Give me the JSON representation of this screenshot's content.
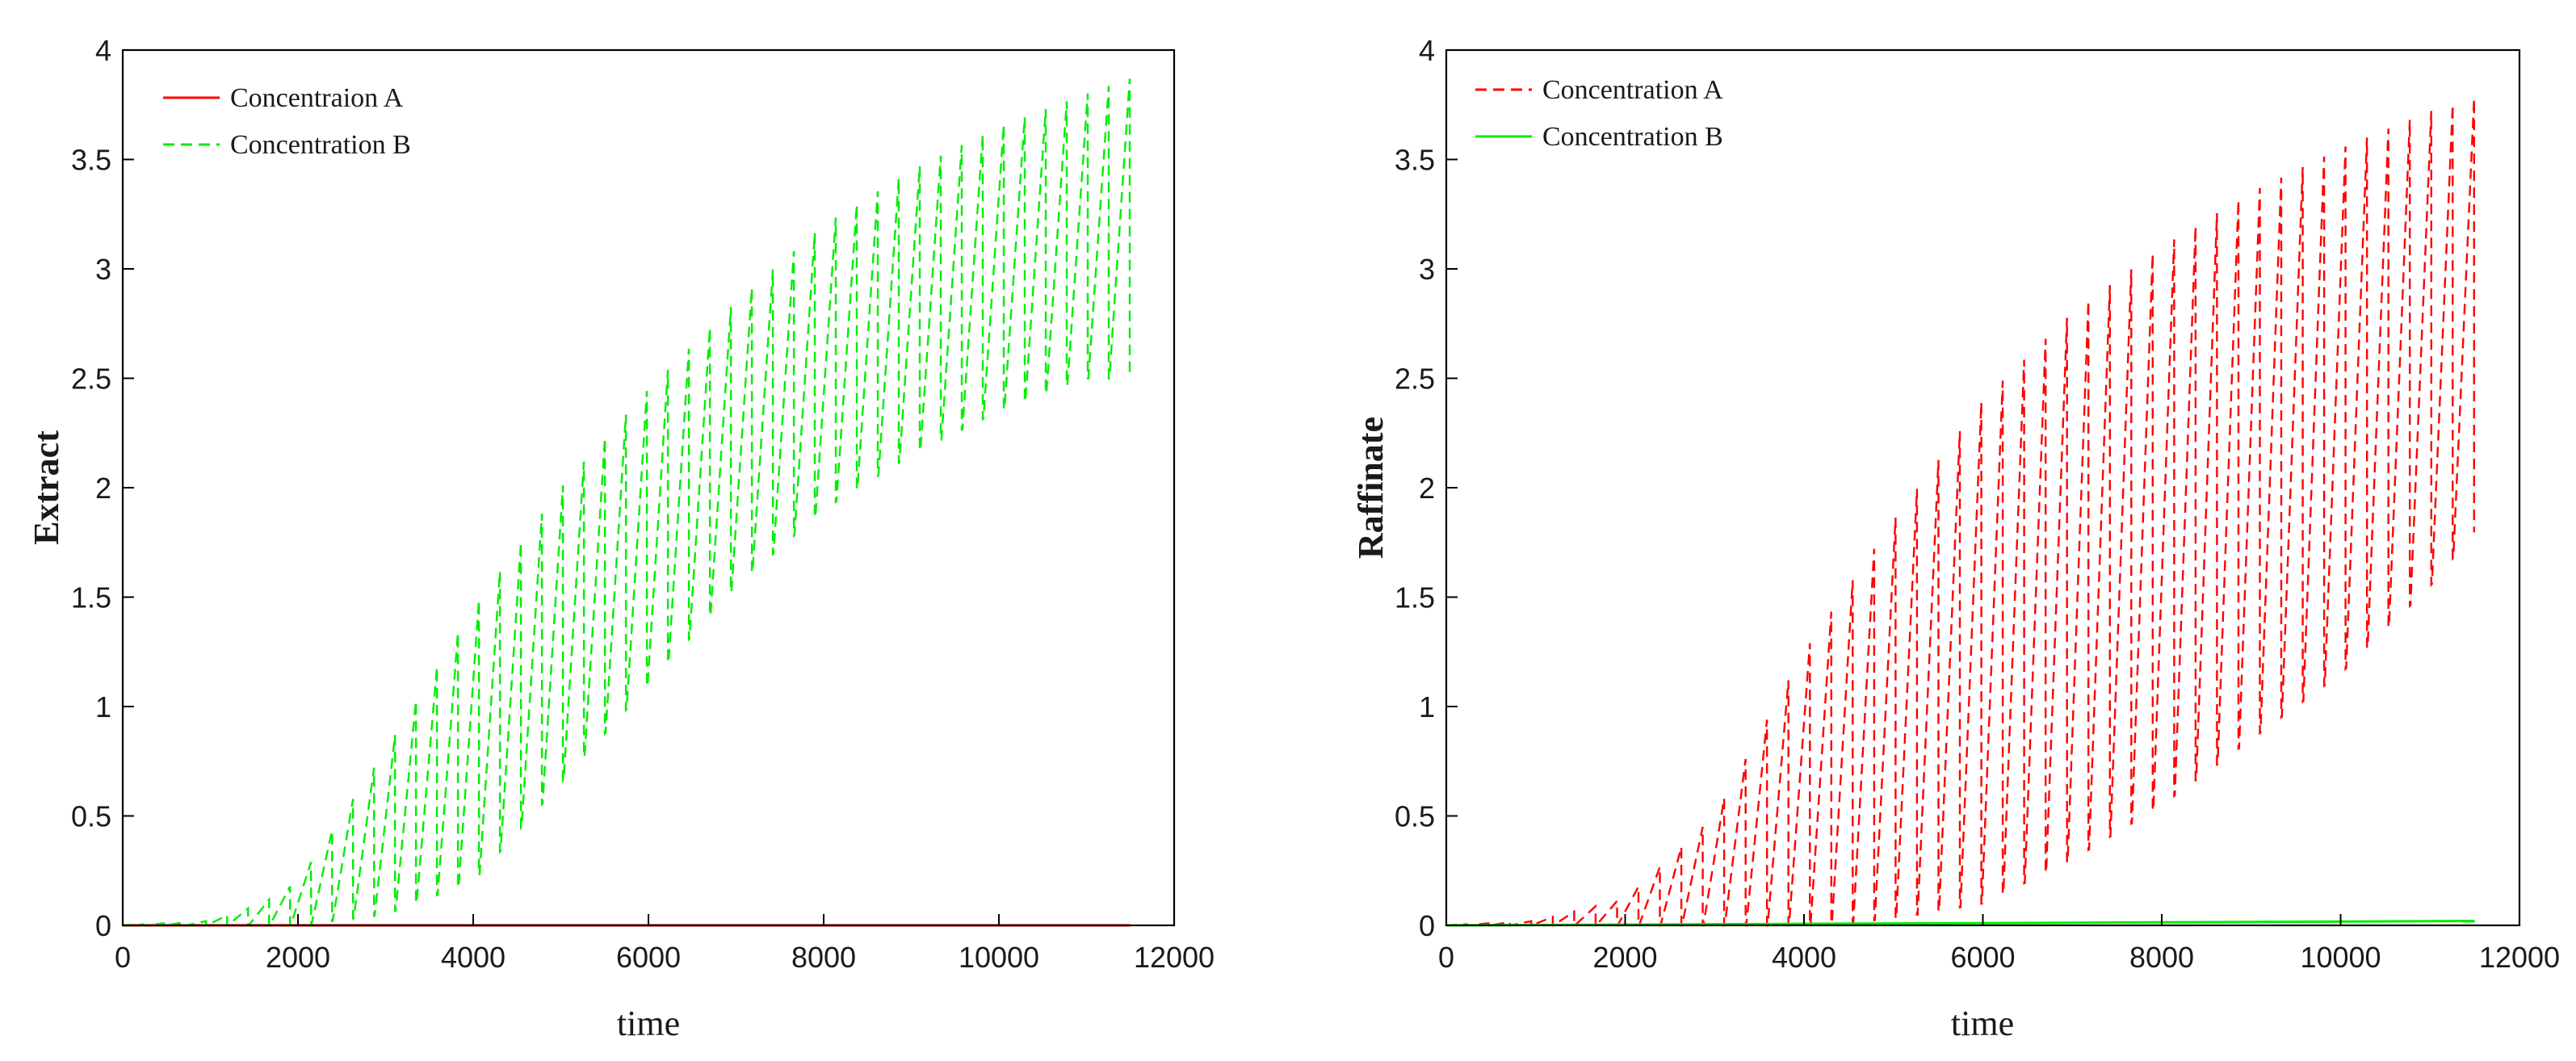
{
  "chart_data": [
    {
      "type": "line",
      "title": "",
      "xlabel": "time",
      "ylabel": "Extract",
      "xlim": [
        0,
        12000
      ],
      "ylim": [
        0,
        4
      ],
      "xticks": [
        0,
        2000,
        4000,
        6000,
        8000,
        10000,
        12000
      ],
      "yticks": [
        0,
        0.5,
        1,
        1.5,
        2,
        2.5,
        3,
        3.5,
        4
      ],
      "ytick_labels": [
        "0",
        "0.5",
        "1",
        "1.5",
        "2",
        "2.5",
        "3",
        "3.5",
        "4"
      ],
      "xtick_labels": [
        "0",
        "2000",
        "4000",
        "6000",
        "8000",
        "10000",
        "12000"
      ],
      "legend_position": "top-left",
      "cycles": 48,
      "cycle_start_time": 0,
      "cycle_end_time": 11500,
      "series": [
        {
          "name": "Concentraion A",
          "color": "#ff0000",
          "style": "solid",
          "x": [
            0,
            11500
          ],
          "y": [
            0,
            0
          ]
        },
        {
          "name": "Concentration B",
          "color": "#00ee00",
          "style": "dashed",
          "x": [
            0,
            1000,
            1600,
            2000,
            3000,
            4000,
            5000,
            6000,
            7000,
            8000,
            9000,
            10000,
            11000,
            11500
          ],
          "upper": [
            0,
            0.02,
            0.1,
            0.2,
            0.8,
            1.45,
            2.0,
            2.45,
            2.85,
            3.2,
            3.45,
            3.65,
            3.8,
            3.87
          ],
          "lower": [
            0,
            0,
            0,
            0,
            0.05,
            0.2,
            0.65,
            1.1,
            1.55,
            1.9,
            2.15,
            2.35,
            2.5,
            2.5
          ]
        }
      ]
    },
    {
      "type": "line",
      "title": "",
      "xlabel": "time",
      "ylabel": "Raffinate",
      "xlim": [
        0,
        12000
      ],
      "ylim": [
        0,
        4
      ],
      "xticks": [
        0,
        2000,
        4000,
        6000,
        8000,
        10000,
        12000
      ],
      "yticks": [
        0,
        0.5,
        1,
        1.5,
        2,
        2.5,
        3,
        3.5,
        4
      ],
      "ytick_labels": [
        "0",
        "0.5",
        "1",
        "1.5",
        "2",
        "2.5",
        "3",
        "3.5",
        "4"
      ],
      "xtick_labels": [
        "0",
        "2000",
        "4000",
        "6000",
        "8000",
        "10000",
        "12000"
      ],
      "legend_position": "top-left",
      "cycles": 48,
      "cycle_start_time": 0,
      "cycle_end_time": 11500,
      "series": [
        {
          "name": "Concentration A",
          "color": "#ff0000",
          "style": "dashed",
          "x": [
            0,
            1000,
            2000,
            3000,
            4000,
            5000,
            6000,
            7000,
            8000,
            9000,
            10000,
            11000,
            11500
          ],
          "upper": [
            0,
            0.02,
            0.12,
            0.5,
            1.25,
            1.85,
            2.4,
            2.8,
            3.1,
            3.35,
            3.55,
            3.72,
            3.78
          ],
          "lower": [
            0,
            0,
            0,
            0,
            0,
            0.03,
            0.1,
            0.3,
            0.55,
            0.85,
            1.15,
            1.55,
            1.8
          ]
        },
        {
          "name": "Concentration B",
          "color": "#00ee00",
          "style": "solid",
          "x": [
            0,
            11500
          ],
          "y": [
            0,
            0.02
          ]
        }
      ]
    }
  ]
}
